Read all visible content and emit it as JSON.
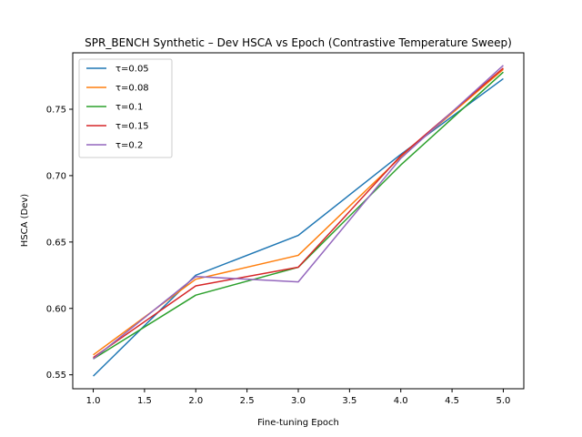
{
  "chart_data": {
    "type": "line",
    "title": "SPR_BENCH Synthetic – Dev HSCA vs Epoch (Contrastive Temperature Sweep)",
    "xlabel": "Fine-tuning Epoch",
    "ylabel": "HSCA (Dev)",
    "x": [
      1.0,
      2.0,
      3.0,
      4.0,
      5.0
    ],
    "xlim": [
      0.8,
      5.2
    ],
    "ylim": [
      0.5395,
      0.7925
    ],
    "xticks": [
      "1.0",
      "1.5",
      "2.0",
      "2.5",
      "3.0",
      "3.5",
      "4.0",
      "4.5",
      "5.0"
    ],
    "yticks": [
      "0.55",
      "0.60",
      "0.65",
      "0.70",
      "0.75"
    ],
    "grid": false,
    "legend_position": "upper-left",
    "series": [
      {
        "name": "τ=0.05",
        "color": "#1f77b4",
        "values": [
          0.549,
          0.625,
          0.655,
          0.716,
          0.773
        ]
      },
      {
        "name": "τ=0.08",
        "color": "#ff7f0e",
        "values": [
          0.565,
          0.622,
          0.64,
          0.714,
          0.78
        ]
      },
      {
        "name": "τ=0.1",
        "color": "#2ca02c",
        "values": [
          0.562,
          0.61,
          0.631,
          0.708,
          0.778
        ]
      },
      {
        "name": "τ=0.15",
        "color": "#d62728",
        "values": [
          0.563,
          0.617,
          0.631,
          0.715,
          0.781
        ]
      },
      {
        "name": "τ=0.2",
        "color": "#9467bd",
        "values": [
          0.562,
          0.624,
          0.62,
          0.713,
          0.783
        ]
      }
    ]
  }
}
